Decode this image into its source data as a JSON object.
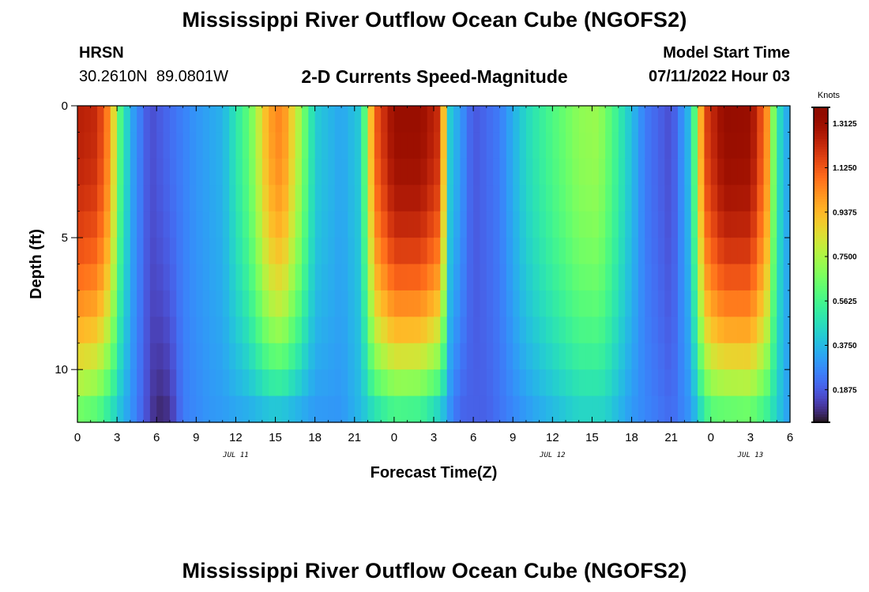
{
  "page": {
    "title": "Mississippi River Outflow Ocean Cube (NGOFS2)",
    "station_name": "HRSN",
    "station_coords": "30.2610N  89.0801W",
    "subtitle": "2-D Currents Speed-Magnitude",
    "model_start_label": "Model Start Time",
    "model_start_value": "07/11/2022 Hour 03",
    "footer_title": "Mississippi River Outflow Ocean Cube (NGOFS2)"
  },
  "chart_data": {
    "type": "heatmap",
    "xlabel": "Forecast Time(Z)",
    "ylabel": "Depth (ft)",
    "x_range_hours": [
      0,
      54
    ],
    "y_range_ft": [
      0,
      12
    ],
    "y_inverted": true,
    "x_tick_labels": [
      "0",
      "3",
      "6",
      "9",
      "12",
      "15",
      "18",
      "21",
      "0",
      "3",
      "6",
      "9",
      "12",
      "15",
      "18",
      "21",
      "0",
      "3",
      "6"
    ],
    "y_tick_labels": [
      "0",
      "5",
      "10"
    ],
    "y_tick_values": [
      0,
      5,
      10
    ],
    "date_labels": [
      {
        "label": "JUL 11",
        "hour": 12
      },
      {
        "label": "JUL 12",
        "hour": 36
      },
      {
        "label": "JUL 13",
        "hour": 51
      }
    ],
    "colorbar": {
      "unit": "Knots",
      "range": [
        0.05,
        1.38
      ],
      "tick_values": [
        0.1875,
        0.375,
        0.5625,
        0.75,
        0.9375,
        1.125,
        1.3125
      ],
      "tick_labels": [
        "0.1875",
        "0.3750",
        "0.5625",
        "0.7500",
        "0.9375",
        "1.1250",
        "1.3125"
      ],
      "colormap": "turbo"
    },
    "surface_speed_knots": [
      {
        "hour": 0,
        "value": 1.25
      },
      {
        "hour": 1.5,
        "value": 1.22
      },
      {
        "hour": 2.5,
        "value": 1.0
      },
      {
        "hour": 3.3,
        "value": 0.55
      },
      {
        "hour": 4.2,
        "value": 0.32
      },
      {
        "hour": 5.5,
        "value": 0.16
      },
      {
        "hour": 7,
        "value": 0.22
      },
      {
        "hour": 9,
        "value": 0.3
      },
      {
        "hour": 11,
        "value": 0.36
      },
      {
        "hour": 13,
        "value": 0.62
      },
      {
        "hour": 14.5,
        "value": 0.98
      },
      {
        "hour": 15.5,
        "value": 1.05
      },
      {
        "hour": 16.8,
        "value": 0.75
      },
      {
        "hour": 18,
        "value": 0.42
      },
      {
        "hour": 20,
        "value": 0.33
      },
      {
        "hour": 21.5,
        "value": 0.42
      },
      {
        "hour": 22.5,
        "value": 1.1
      },
      {
        "hour": 24,
        "value": 1.32
      },
      {
        "hour": 26,
        "value": 1.32
      },
      {
        "hour": 27.5,
        "value": 1.2
      },
      {
        "hour": 28.2,
        "value": 0.42
      },
      {
        "hour": 30,
        "value": 0.18
      },
      {
        "hour": 32,
        "value": 0.25
      },
      {
        "hour": 34,
        "value": 0.45
      },
      {
        "hour": 36,
        "value": 0.58
      },
      {
        "hour": 38,
        "value": 0.7
      },
      {
        "hour": 39.5,
        "value": 0.72
      },
      {
        "hour": 41,
        "value": 0.52
      },
      {
        "hour": 43,
        "value": 0.25
      },
      {
        "hour": 45,
        "value": 0.16
      },
      {
        "hour": 46.5,
        "value": 0.4
      },
      {
        "hour": 47.5,
        "value": 1.15
      },
      {
        "hour": 49,
        "value": 1.33
      },
      {
        "hour": 51,
        "value": 1.32
      },
      {
        "hour": 52.2,
        "value": 1.05
      },
      {
        "hour": 53,
        "value": 0.5
      },
      {
        "hour": 54,
        "value": 0.3
      }
    ],
    "bottom_speed_knots": [
      {
        "hour": 0,
        "value": 0.6
      },
      {
        "hour": 1.5,
        "value": 0.55
      },
      {
        "hour": 3,
        "value": 0.4
      },
      {
        "hour": 4.5,
        "value": 0.25
      },
      {
        "hour": 6,
        "value": 0.08
      },
      {
        "hour": 7,
        "value": 0.1
      },
      {
        "hour": 8,
        "value": 0.25
      },
      {
        "hour": 10,
        "value": 0.3
      },
      {
        "hour": 12,
        "value": 0.32
      },
      {
        "hour": 15,
        "value": 0.35
      },
      {
        "hour": 18,
        "value": 0.3
      },
      {
        "hour": 20,
        "value": 0.3
      },
      {
        "hour": 22,
        "value": 0.4
      },
      {
        "hour": 24,
        "value": 0.5
      },
      {
        "hour": 26,
        "value": 0.48
      },
      {
        "hour": 27.5,
        "value": 0.36
      },
      {
        "hour": 29,
        "value": 0.2
      },
      {
        "hour": 31,
        "value": 0.2
      },
      {
        "hour": 34,
        "value": 0.3
      },
      {
        "hour": 38,
        "value": 0.42
      },
      {
        "hour": 40,
        "value": 0.42
      },
      {
        "hour": 42,
        "value": 0.3
      },
      {
        "hour": 45,
        "value": 0.22
      },
      {
        "hour": 46.5,
        "value": 0.3
      },
      {
        "hour": 48,
        "value": 0.55
      },
      {
        "hour": 51,
        "value": 0.58
      },
      {
        "hour": 52.5,
        "value": 0.48
      },
      {
        "hour": 54,
        "value": 0.3
      }
    ]
  }
}
